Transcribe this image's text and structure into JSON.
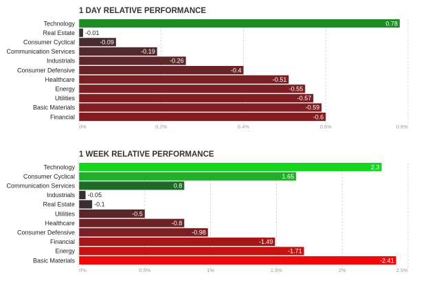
{
  "chart_data": [
    {
      "type": "bar",
      "orientation": "horizontal",
      "title": "1 DAY RELATIVE PERFORMANCE",
      "categories": [
        "Technology",
        "Real Estate",
        "Consumer Cyclical",
        "Communication Services",
        "Industrials",
        "Consumer Defensive",
        "Healthcare",
        "Energy",
        "Utilities",
        "Basic Materials",
        "Financial"
      ],
      "values": [
        0.78,
        -0.01,
        -0.09,
        -0.19,
        -0.26,
        -0.4,
        -0.51,
        -0.55,
        -0.57,
        -0.59,
        -0.6
      ],
      "value_labels": [
        "0.78",
        "-0.01",
        "-0.09",
        "-0.19",
        "-0.26",
        "-0.4",
        "-0.51",
        "-0.55",
        "-0.57",
        "-0.59",
        "-0.6"
      ],
      "xlim": [
        0,
        0.8
      ],
      "xticks": [
        0,
        0.2,
        0.4,
        0.6,
        0.8
      ],
      "xtick_labels": [
        "0%",
        "0.2%",
        "0.4%",
        "0.6%",
        "0.8%"
      ],
      "bar_colors": [
        "#1e8c25",
        "#3a3335",
        "#4a2c30",
        "#542a2e",
        "#5e272b",
        "#6a2428",
        "#7a2024",
        "#7e1f23",
        "#7f1e22",
        "#821d21",
        "#841c20"
      ],
      "grid": true
    },
    {
      "type": "bar",
      "orientation": "horizontal",
      "title": "1 WEEK RELATIVE PERFORMANCE",
      "categories": [
        "Technology",
        "Consumer Cyclical",
        "Communication Services",
        "Industrials",
        "Real Estate",
        "Utilities",
        "Healthcare",
        "Consumer Defensive",
        "Financial",
        "Energy",
        "Basic Materials"
      ],
      "values": [
        2.3,
        1.65,
        0.8,
        -0.05,
        -0.1,
        -0.5,
        -0.8,
        -0.98,
        -1.49,
        -1.71,
        -2.41
      ],
      "value_labels": [
        "2.3",
        "1.65",
        "0.8",
        "-0.05",
        "-0.1",
        "-0.5",
        "-0.8",
        "-0.98",
        "-1.49",
        "-1.71",
        "-2.41"
      ],
      "xlim": [
        0,
        2.5
      ],
      "xticks": [
        0,
        0.5,
        1,
        1.5,
        2,
        2.5
      ],
      "xtick_labels": [
        "0%",
        "0.5%",
        "1%",
        "1.5%",
        "2%",
        "2.5%"
      ],
      "bar_colors": [
        "#14d61e",
        "#20b028",
        "#1e6a26",
        "#36302f",
        "#3c2e30",
        "#5a262a",
        "#6e2226",
        "#7a1f23",
        "#a61616",
        "#c81212",
        "#f20808"
      ],
      "grid": true
    }
  ]
}
